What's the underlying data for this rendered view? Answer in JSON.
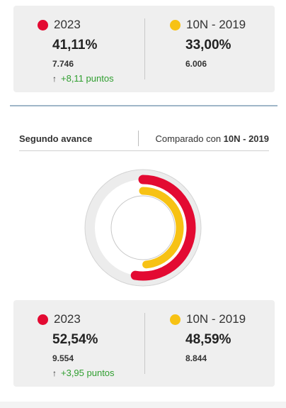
{
  "top_card": {
    "left": {
      "year": "2023",
      "pct": "41,11%",
      "count": "7.746",
      "delta": "+8,11 puntos",
      "color": "#e30a32"
    },
    "right": {
      "year": "10N - 2019",
      "pct": "33,00%",
      "count": "6.006",
      "color": "#f7c214"
    }
  },
  "section": {
    "title": "Segundo avance",
    "compare_prefix": "Comparado con",
    "compare_target": "10N - 2019"
  },
  "chart_data": {
    "type": "donut",
    "series": [
      {
        "name": "2023",
        "value": 52.54,
        "color": "#e30a32"
      },
      {
        "name": "10N - 2019",
        "value": 48.59,
        "color": "#f7c214"
      }
    ],
    "max": 100
  },
  "bottom_card": {
    "left": {
      "year": "2023",
      "pct": "52,54%",
      "count": "9.554",
      "delta": "+3,95 puntos",
      "color": "#e30a32"
    },
    "right": {
      "year": "10N - 2019",
      "pct": "48,59%",
      "count": "8.844",
      "color": "#f7c214"
    }
  },
  "icons": {
    "delta_arrow": "arrow-up-icon"
  },
  "colors": {
    "positive": "#2f9e2f",
    "track": "#ececec"
  }
}
